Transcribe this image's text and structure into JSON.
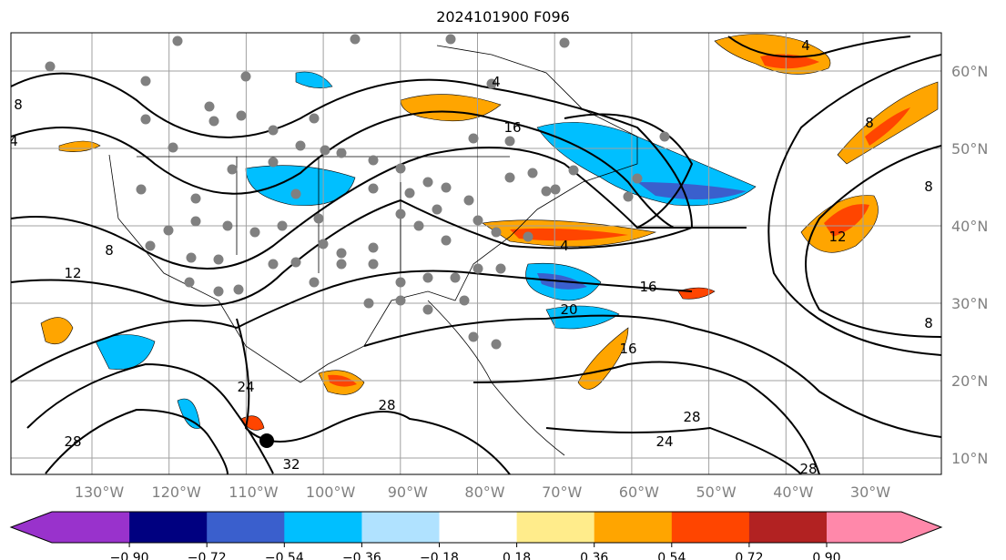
{
  "title": "2024101900 F096",
  "lat_labels": [
    "60°N",
    "50°N",
    "40°N",
    "30°N",
    "20°N",
    "10°N"
  ],
  "lon_labels": [
    "130°W",
    "120°W",
    "110°W",
    "100°W",
    "90°W",
    "80°W",
    "70°W",
    "60°W",
    "50°W",
    "40°W",
    "30°W"
  ],
  "colorbar": {
    "ticks": [
      "−0.90",
      "−0.72",
      "−0.54",
      "−0.36",
      "−0.18",
      "0.18",
      "0.36",
      "0.54",
      "0.72",
      "0.90"
    ],
    "colors": [
      "#9932cc",
      "#000080",
      "#3a5fcd",
      "#00bfff",
      "#b0e2ff",
      "#ffffff",
      "#ffec8b",
      "#ffa500",
      "#ff4500",
      "#b22222",
      "#ff88aa"
    ]
  },
  "contour_labels": [
    "4",
    "8",
    "4",
    "16",
    "12",
    "8",
    "4",
    "20",
    "16",
    "16",
    "24",
    "28",
    "28",
    "32",
    "28",
    "8",
    "8",
    "12",
    "24",
    "28",
    "8",
    "4"
  ],
  "colors": {
    "gridline": "#a0a0a0",
    "station_dot": "#808080"
  }
}
